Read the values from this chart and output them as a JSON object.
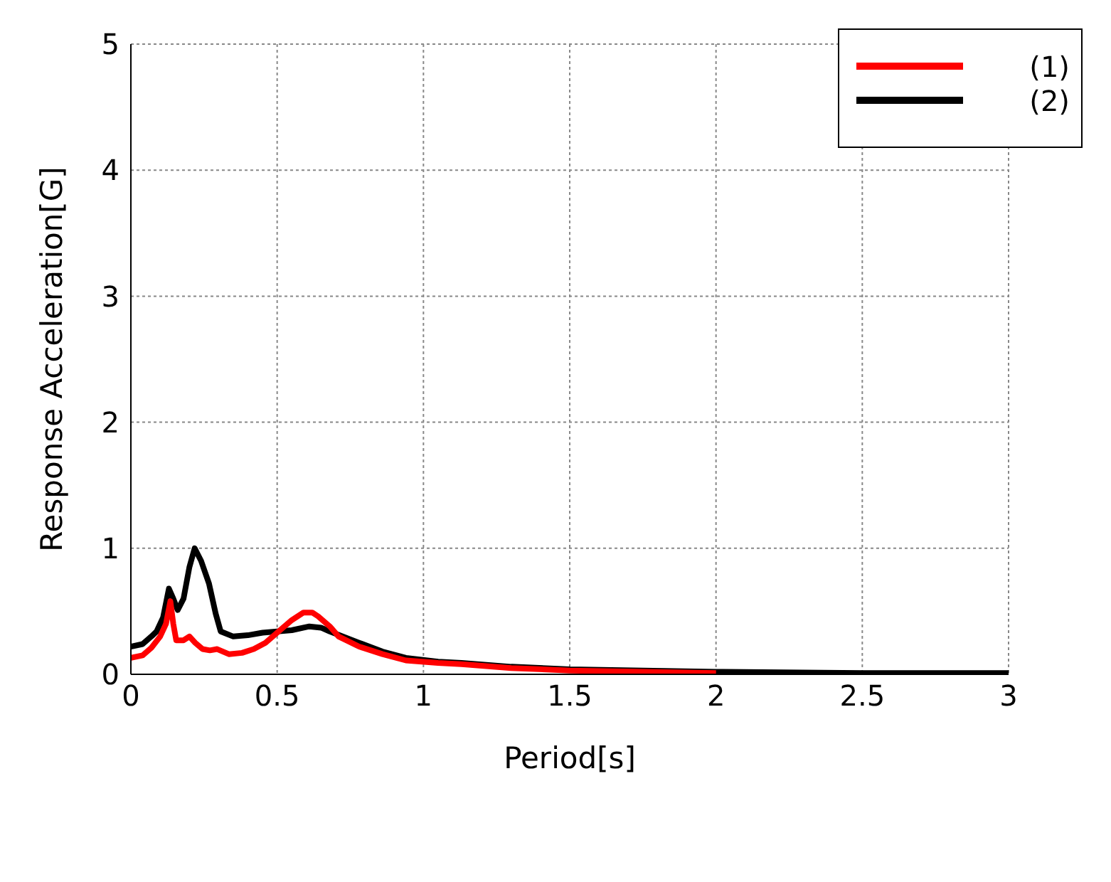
{
  "chart_data": {
    "type": "line",
    "xlabel": "Period[s]",
    "ylabel": "Response Acceleration[G]",
    "xlim": [
      0,
      3
    ],
    "ylim": [
      0,
      5
    ],
    "xticks": [
      0,
      0.5,
      1,
      1.5,
      2,
      2.5,
      3
    ],
    "yticks": [
      0,
      1,
      2,
      3,
      4,
      5
    ],
    "grid": true,
    "legend": "top right",
    "marker": "none",
    "line_style": "solid",
    "series": [
      {
        "name": "(1)",
        "color": "#ff0000",
        "x": [
          0,
          0.04,
          0.07,
          0.1,
          0.12,
          0.135,
          0.145,
          0.155,
          0.18,
          0.2,
          0.22,
          0.245,
          0.27,
          0.295,
          0.335,
          0.38,
          0.42,
          0.46,
          0.5,
          0.55,
          0.59,
          0.62,
          0.64,
          0.68,
          0.71,
          0.78,
          0.86,
          0.94,
          1.05,
          1.13,
          1.3,
          1.5,
          1.75,
          2
        ],
        "values": [
          0.13,
          0.15,
          0.21,
          0.3,
          0.4,
          0.58,
          0.4,
          0.27,
          0.27,
          0.3,
          0.25,
          0.2,
          0.19,
          0.2,
          0.16,
          0.17,
          0.2,
          0.25,
          0.33,
          0.43,
          0.49,
          0.49,
          0.46,
          0.38,
          0.3,
          0.22,
          0.16,
          0.11,
          0.09,
          0.08,
          0.05,
          0.03,
          0.02,
          0.01
        ]
      },
      {
        "name": "(2)",
        "color": "#000000",
        "x": [
          0,
          0.04,
          0.07,
          0.088,
          0.11,
          0.13,
          0.145,
          0.16,
          0.18,
          0.2,
          0.218,
          0.24,
          0.267,
          0.29,
          0.307,
          0.35,
          0.4,
          0.45,
          0.5,
          0.55,
          0.61,
          0.65,
          0.68,
          0.78,
          0.86,
          0.94,
          1.05,
          1.13,
          1.3,
          1.5,
          1.75,
          2,
          2.5,
          3
        ],
        "values": [
          0.22,
          0.24,
          0.3,
          0.34,
          0.45,
          0.68,
          0.6,
          0.51,
          0.6,
          0.85,
          1.0,
          0.9,
          0.72,
          0.48,
          0.34,
          0.3,
          0.31,
          0.33,
          0.34,
          0.35,
          0.38,
          0.37,
          0.34,
          0.25,
          0.18,
          0.13,
          0.1,
          0.09,
          0.06,
          0.04,
          0.03,
          0.02,
          0.01,
          0.01
        ]
      }
    ]
  }
}
